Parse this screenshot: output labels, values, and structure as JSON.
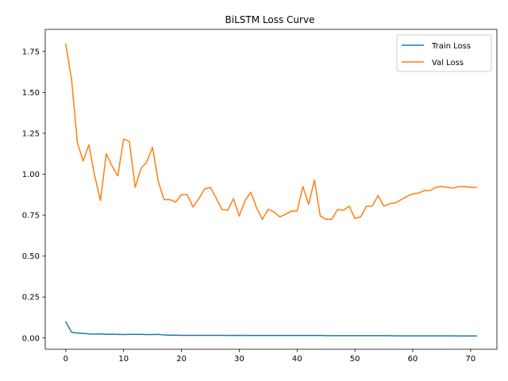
{
  "chart_data": {
    "type": "line",
    "title": "BiLSTM Loss Curve",
    "xlabel": "",
    "ylabel": "",
    "xlim": [
      -3.55,
      74.55
    ],
    "ylim": [
      -0.069,
      1.885
    ],
    "xticks": [
      0,
      10,
      20,
      30,
      40,
      50,
      60,
      70
    ],
    "yticks": [
      0.0,
      0.25,
      0.5,
      0.75,
      1.0,
      1.25,
      1.5,
      1.75
    ],
    "ytick_labels": [
      "0.00",
      "0.25",
      "0.50",
      "0.75",
      "1.00",
      "1.25",
      "1.50",
      "1.75"
    ],
    "grid": false,
    "legend_position": "top-right",
    "x": [
      0,
      1,
      2,
      3,
      4,
      5,
      6,
      7,
      8,
      9,
      10,
      11,
      12,
      13,
      14,
      15,
      16,
      17,
      18,
      19,
      20,
      21,
      22,
      23,
      24,
      25,
      26,
      27,
      28,
      29,
      30,
      31,
      32,
      33,
      34,
      35,
      36,
      37,
      38,
      39,
      40,
      41,
      42,
      43,
      44,
      45,
      46,
      47,
      48,
      49,
      50,
      51,
      52,
      53,
      54,
      55,
      56,
      57,
      58,
      59,
      60,
      61,
      62,
      63,
      64,
      65,
      66,
      67,
      68,
      69,
      70,
      71
    ],
    "series": [
      {
        "name": "Train Loss",
        "color": "#1f77b4",
        "values": [
          0.098,
          0.035,
          0.03,
          0.028,
          0.025,
          0.024,
          0.025,
          0.022,
          0.023,
          0.022,
          0.021,
          0.022,
          0.022,
          0.022,
          0.021,
          0.021,
          0.022,
          0.018,
          0.017,
          0.017,
          0.016,
          0.016,
          0.016,
          0.016,
          0.016,
          0.016,
          0.016,
          0.016,
          0.015,
          0.015,
          0.016,
          0.015,
          0.015,
          0.015,
          0.015,
          0.015,
          0.015,
          0.015,
          0.015,
          0.015,
          0.015,
          0.015,
          0.015,
          0.015,
          0.015,
          0.014,
          0.014,
          0.014,
          0.014,
          0.014,
          0.014,
          0.014,
          0.014,
          0.014,
          0.014,
          0.014,
          0.014,
          0.013,
          0.013,
          0.013,
          0.013,
          0.013,
          0.013,
          0.013,
          0.013,
          0.013,
          0.013,
          0.013,
          0.012,
          0.012,
          0.012,
          0.012
        ]
      },
      {
        "name": "Val Loss",
        "color": "#ff7f0e",
        "values": [
          1.795,
          1.58,
          1.195,
          1.08,
          1.18,
          0.99,
          0.84,
          1.125,
          1.05,
          0.99,
          1.215,
          1.2,
          0.92,
          1.035,
          1.075,
          1.165,
          0.955,
          0.845,
          0.845,
          0.83,
          0.875,
          0.875,
          0.8,
          0.85,
          0.91,
          0.92,
          0.855,
          0.785,
          0.78,
          0.85,
          0.745,
          0.84,
          0.89,
          0.795,
          0.725,
          0.785,
          0.77,
          0.74,
          0.755,
          0.775,
          0.775,
          0.925,
          0.815,
          0.965,
          0.745,
          0.725,
          0.725,
          0.785,
          0.78,
          0.805,
          0.73,
          0.74,
          0.805,
          0.805,
          0.87,
          0.805,
          0.82,
          0.825,
          0.845,
          0.865,
          0.88,
          0.885,
          0.9,
          0.9,
          0.92,
          0.925,
          0.92,
          0.915,
          0.925,
          0.925,
          0.92,
          0.92
        ]
      }
    ]
  }
}
